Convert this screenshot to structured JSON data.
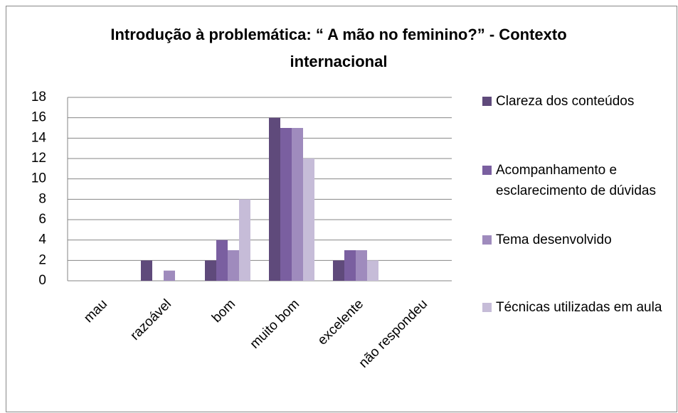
{
  "chart_data": {
    "type": "bar",
    "title": "Introdução à problemática: “ A mão no feminino?” - Contexto internacional",
    "categories": [
      "mau",
      "razoável",
      "bom",
      "muito bom",
      "excelente",
      "não respondeu"
    ],
    "series": [
      {
        "name": "Clareza dos conteúdos",
        "color": "#5f4a7b",
        "values": [
          0,
          2,
          2,
          16,
          2,
          0
        ]
      },
      {
        "name": "Acompanhamento e esclarecimento de dúvidas",
        "color": "#7a5fa0",
        "values": [
          0,
          0,
          4,
          15,
          3,
          0
        ]
      },
      {
        "name": "Tema desenvolvido",
        "color": "#9f8bbd",
        "values": [
          0,
          1,
          3,
          15,
          3,
          0
        ]
      },
      {
        "name": "Técnicas utilizadas em aula",
        "color": "#c6bcd8",
        "values": [
          0,
          0,
          8,
          12,
          2,
          0
        ]
      }
    ],
    "ylim": [
      0,
      18
    ],
    "yticks": [
      0,
      2,
      4,
      6,
      8,
      10,
      12,
      14,
      16,
      18
    ],
    "grid": true,
    "legend": "right"
  }
}
